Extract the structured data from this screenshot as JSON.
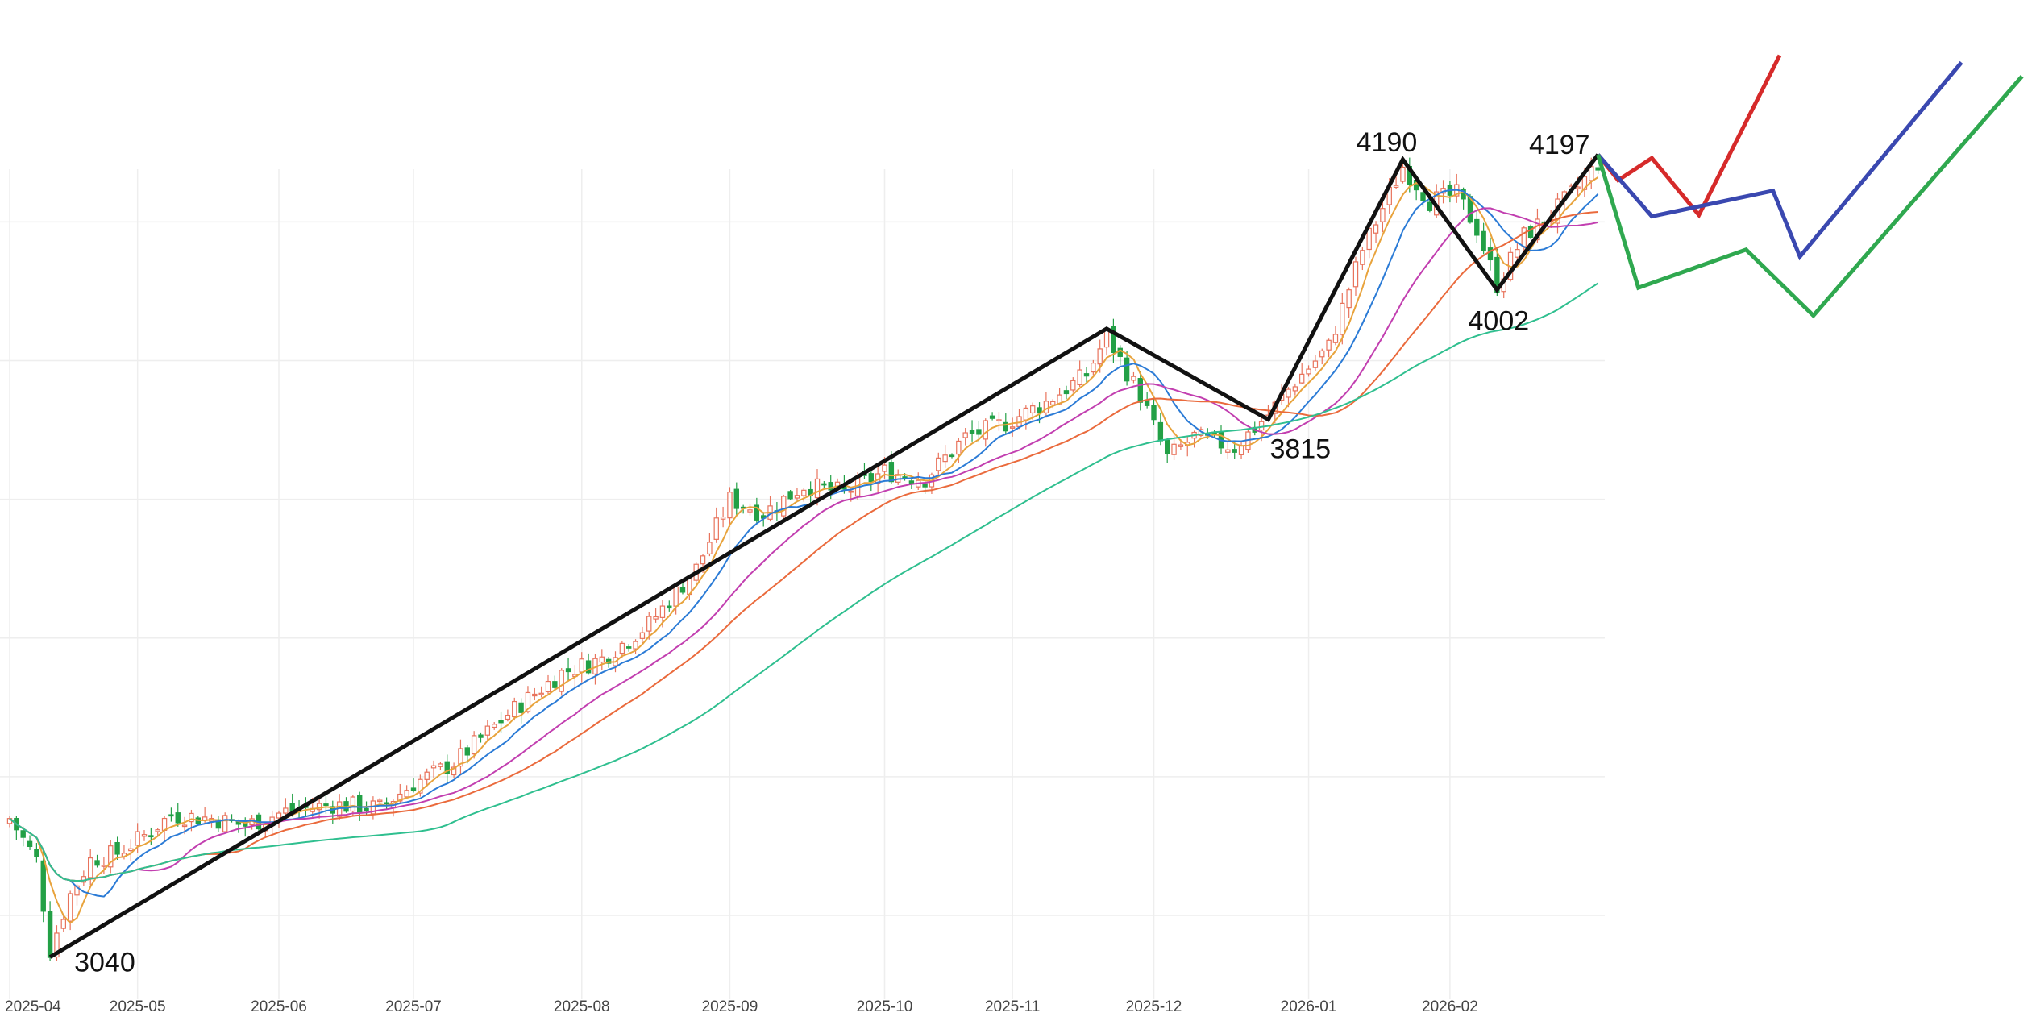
{
  "chart_data": {
    "type": "candlestick",
    "title": "",
    "xlabel": "",
    "ylabel": "",
    "ylim": [
      3000,
      4420
    ],
    "grid": true,
    "months": [
      "2025-04",
      "2025-05",
      "2025-06",
      "2025-07",
      "2025-08",
      "2025-09",
      "2025-10",
      "2025-11",
      "2025-12",
      "2026-01",
      "2026-02"
    ],
    "month_day_index": [
      0,
      19,
      40,
      60,
      85,
      107,
      130,
      149,
      170,
      193,
      214
    ],
    "total_days": 237,
    "future_days": 63,
    "colors": {
      "up": "#e8735c",
      "down": "#23a046",
      "ma5": "#e8a33c",
      "ma10": "#2b7bd6",
      "ma20": "#c23fb0",
      "ma30": "#ea6a3c",
      "ma60": "#2fbf8f",
      "wave": "#111111",
      "red_path": "#d62a2a",
      "blue_path": "#3a48b0",
      "green_path": "#2fa84f",
      "grid": "#eeeeee",
      "tick": "#444444"
    },
    "wave_points": [
      {
        "day": 6,
        "price": 3040,
        "label": "3040"
      },
      {
        "day": 163,
        "price": 3946,
        "label": ""
      },
      {
        "day": 187,
        "price": 3815,
        "label": "3815"
      },
      {
        "day": 207,
        "price": 4190,
        "label": "4190"
      },
      {
        "day": 221,
        "price": 4002,
        "label": "4002"
      },
      {
        "day": 236,
        "price": 4197,
        "label": "4197"
      }
    ],
    "annotations": [
      "3040",
      "3815",
      "4190",
      "4002",
      "4197"
    ],
    "scenarios": [
      {
        "name": "red",
        "points": [
          [
            236,
            4197
          ],
          [
            239,
            4160
          ],
          [
            244,
            4192
          ],
          [
            251,
            4110
          ],
          [
            263,
            4340
          ]
        ]
      },
      {
        "name": "blue",
        "points": [
          [
            236,
            4197
          ],
          [
            244,
            4108
          ],
          [
            262,
            4145
          ],
          [
            266,
            4050
          ],
          [
            290,
            4330
          ]
        ]
      },
      {
        "name": "green",
        "points": [
          [
            236,
            4197
          ],
          [
            242,
            4005
          ],
          [
            258,
            4060
          ],
          [
            268,
            3965
          ],
          [
            299,
            4310
          ]
        ]
      }
    ]
  }
}
